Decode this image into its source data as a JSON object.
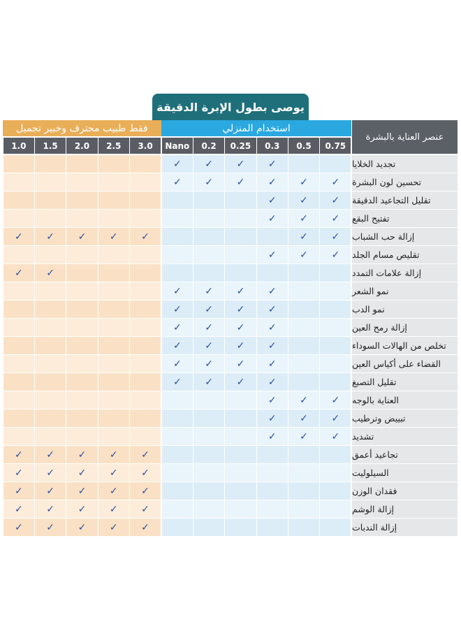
{
  "title": "يوصى بطول الإبرة الدقيقة",
  "table": {
    "corner": "عنصر العناية بالبشرة",
    "groups": [
      "استخدام المنزلي",
      "فقط طبيب محترف وخبير تجميل"
    ],
    "columns": [
      "0.75",
      "0.5",
      "0.3",
      "0.25",
      "0.2",
      "Nano",
      "3.0",
      "2.5",
      "2.0",
      "1.5",
      "1.0"
    ],
    "rows": [
      {
        "label": "تجديد الخلايا",
        "cells": [
          null,
          null,
          "✓",
          "✓",
          "✓",
          "✓",
          null,
          null,
          null,
          null,
          null
        ]
      },
      {
        "label": "تحسين لون البشرة",
        "cells": [
          "✓",
          "✓",
          "✓",
          "✓",
          "✓",
          "✓",
          null,
          null,
          null,
          null,
          null
        ]
      },
      {
        "label": "تقليل التجاعيد الدقيقة",
        "cells": [
          "✓",
          "✓",
          "✓",
          null,
          null,
          null,
          null,
          null,
          null,
          null,
          null
        ]
      },
      {
        "label": "تفتيح البقع",
        "cells": [
          "✓",
          "✓",
          "✓",
          null,
          null,
          null,
          null,
          null,
          null,
          null,
          null
        ]
      },
      {
        "label": "إزالة حب الشباب",
        "cells": [
          "✓",
          "✓",
          null,
          null,
          null,
          null,
          "✓",
          "✓",
          "✓",
          "✓",
          "✓"
        ]
      },
      {
        "label": "تقليص مسام الجلد",
        "cells": [
          "✓",
          "✓",
          "✓",
          null,
          null,
          null,
          null,
          null,
          null,
          null,
          null
        ]
      },
      {
        "label": "إزالة علامات التمدد",
        "cells": [
          null,
          null,
          null,
          null,
          null,
          null,
          null,
          null,
          null,
          "✓",
          "✓"
        ]
      },
      {
        "label": "نمو الشعر",
        "cells": [
          null,
          null,
          "✓",
          "✓",
          "✓",
          "✓",
          null,
          null,
          null,
          null,
          null
        ]
      },
      {
        "label": "نمو الدب",
        "cells": [
          null,
          null,
          "✓",
          "✓",
          "✓",
          "✓",
          null,
          null,
          null,
          null,
          null
        ]
      },
      {
        "label": "إزالة رمح العين",
        "cells": [
          null,
          null,
          "✓",
          "✓",
          "✓",
          "✓",
          null,
          null,
          null,
          null,
          null
        ]
      },
      {
        "label": "تخلص من الهالات السوداء",
        "cells": [
          null,
          null,
          "✓",
          "✓",
          "✓",
          "✓",
          null,
          null,
          null,
          null,
          null
        ]
      },
      {
        "label": "القضاء على أكياس العين",
        "cells": [
          null,
          null,
          "✓",
          "✓",
          "✓",
          "✓",
          null,
          null,
          null,
          null,
          null
        ]
      },
      {
        "label": "تقليل التصبغ",
        "cells": [
          null,
          null,
          "✓",
          "✓",
          "✓",
          "✓",
          null,
          null,
          null,
          null,
          null
        ]
      },
      {
        "label": "العناية بالوجه",
        "cells": [
          "✓",
          "✓",
          "✓",
          null,
          null,
          null,
          null,
          null,
          null,
          null,
          null
        ]
      },
      {
        "label": "تبييض وترطيب",
        "cells": [
          "✓",
          "✓",
          "✓",
          null,
          null,
          null,
          null,
          null,
          null,
          null,
          null
        ]
      },
      {
        "label": "تشديد",
        "cells": [
          "✓",
          "✓",
          "✓",
          null,
          null,
          null,
          null,
          null,
          null,
          null,
          null
        ]
      },
      {
        "label": "تجاعيد أعمق",
        "cells": [
          null,
          null,
          null,
          null,
          null,
          null,
          "✓",
          "✓",
          "✓",
          "✓",
          "✓"
        ]
      },
      {
        "label": "السيلوليت",
        "cells": [
          null,
          null,
          null,
          null,
          null,
          null,
          "✓",
          "✓",
          "✓",
          "✓",
          "✓"
        ]
      },
      {
        "label": "فقدان الوزن",
        "cells": [
          null,
          null,
          null,
          null,
          null,
          null,
          "✓",
          "✓",
          "✓",
          "✓",
          "✓"
        ]
      },
      {
        "label": "إزالة الوشم",
        "cells": [
          null,
          null,
          null,
          null,
          null,
          null,
          "✓",
          "✓",
          "✓",
          "✓",
          "✓"
        ]
      },
      {
        "label": "إزالة الندبات",
        "cells": [
          null,
          null,
          null,
          null,
          null,
          null,
          "✓",
          "✓",
          "✓",
          "✓",
          "✓"
        ]
      }
    ]
  }
}
